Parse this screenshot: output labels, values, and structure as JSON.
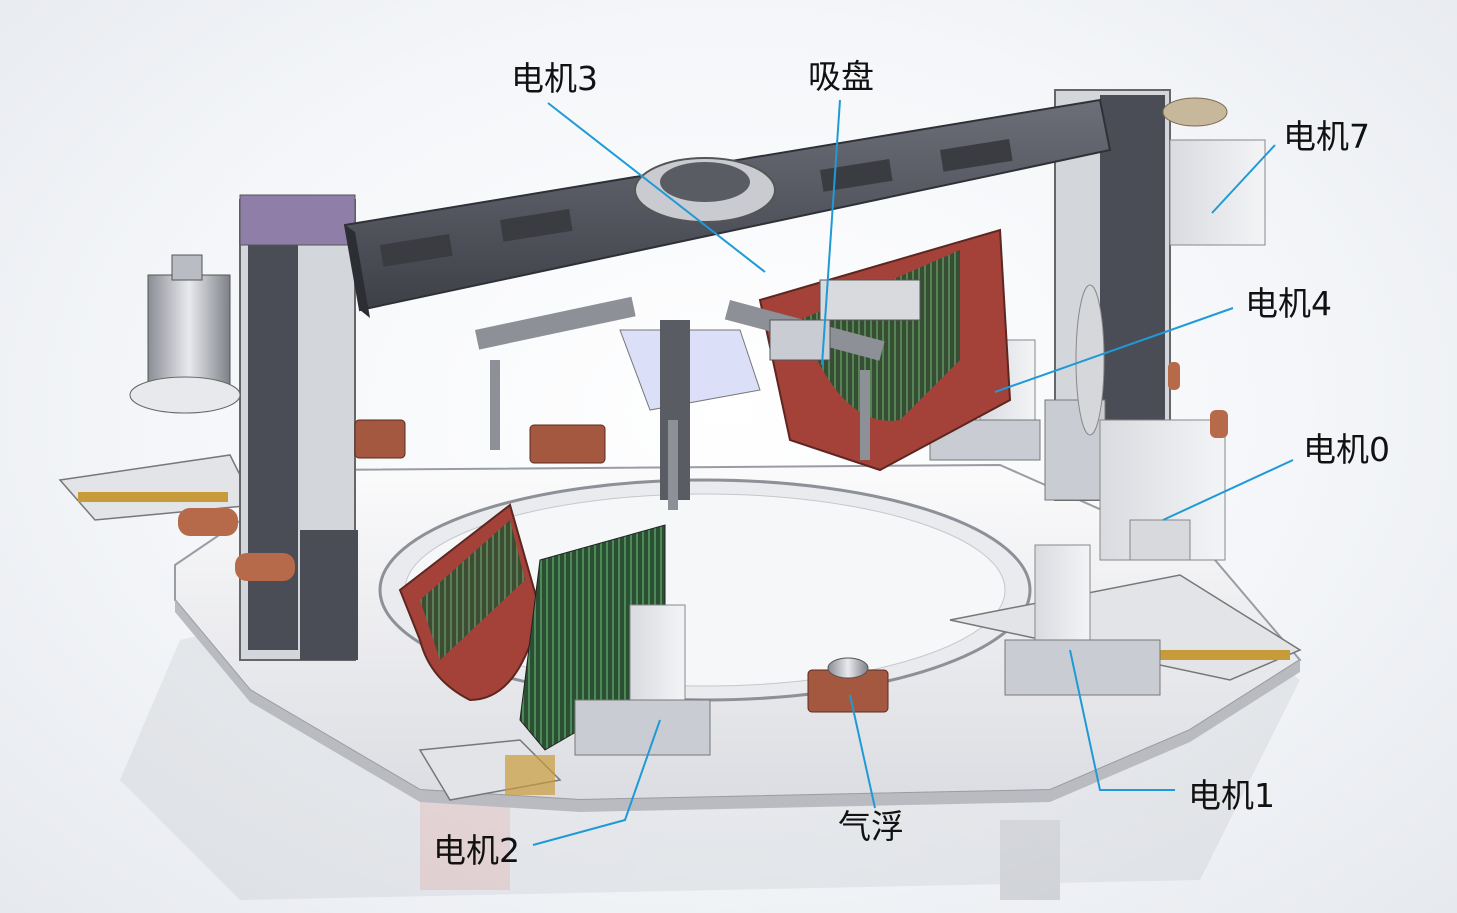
{
  "labels": {
    "motor3": "电机3",
    "sucker": "吸盘",
    "motor7": "电机7",
    "motor4": "电机4",
    "motor0": "电机0",
    "motor1": "电机1",
    "motor2": "电机2",
    "air_float": "气浮"
  },
  "colors": {
    "leader_line": "#1f9ad6",
    "frame_dark": "#54575f",
    "frame_light": "#c9cdd3",
    "cassette_red": "#a4423a",
    "cassette_green": "#2f5b3a",
    "base_plate": "#f2f2f4"
  }
}
